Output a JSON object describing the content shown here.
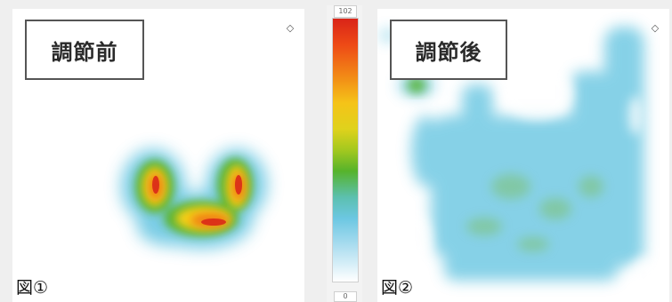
{
  "panels": [
    {
      "title": "調節前",
      "figure_label": "図①"
    },
    {
      "title": "調節後",
      "figure_label": "図②"
    }
  ],
  "colorbar": {
    "max_label": "102",
    "min_label": "0"
  },
  "icons": {
    "panel_corner": "settings-diamond-icon"
  },
  "colors": {
    "high": "#d92418",
    "mid": "#56b32b",
    "low": "#6cc7e2",
    "background": "#ffffff"
  }
}
